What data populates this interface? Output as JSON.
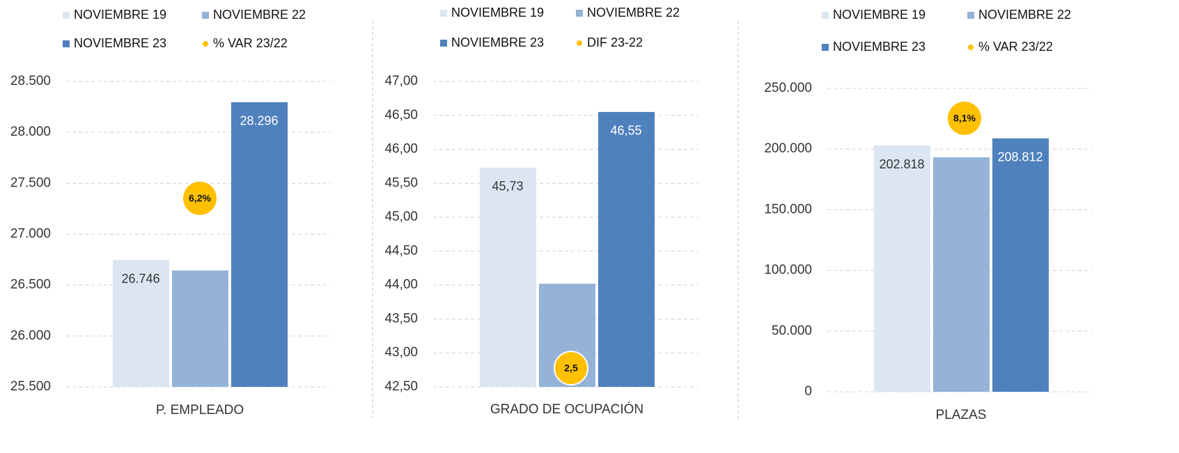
{
  "chart_data": [
    {
      "type": "bar",
      "categories": [
        "P. EMPLEADO"
      ],
      "series": [
        {
          "name": "NOVIEMBRE 19",
          "color": "#dce6f2",
          "values": [
            26746
          ],
          "value_labels": [
            "26.746"
          ]
        },
        {
          "name": "NOVIEMBRE 22",
          "color": "#95b3d7",
          "values": [
            26644
          ]
        },
        {
          "name": "NOVIEMBRE 23",
          "color": "#4f81bd",
          "values": [
            28296
          ],
          "value_labels": [
            "28.296"
          ]
        },
        {
          "name": "% VAR 23/22",
          "color": "#ffc000",
          "values": [
            6.2
          ],
          "value_labels": [
            "6,2%"
          ],
          "marker": true
        }
      ],
      "ylim": [
        25500,
        28500
      ],
      "yticks": [
        {
          "value": 25500,
          "label": "25.500"
        },
        {
          "value": 26000,
          "label": "26.000"
        },
        {
          "value": 26500,
          "label": "26.500"
        },
        {
          "value": 27000,
          "label": "27.000"
        },
        {
          "value": 27500,
          "label": "27.500"
        },
        {
          "value": 28000,
          "label": "28.000"
        },
        {
          "value": 28500,
          "label": "28.500"
        }
      ],
      "grid": true
    },
    {
      "type": "bar",
      "categories": [
        "GRADO DE OCUPACIÓN"
      ],
      "series": [
        {
          "name": "NOVIEMBRE 19",
          "color": "#dce6f2",
          "values": [
            45.73
          ],
          "value_labels": [
            "45,73"
          ]
        },
        {
          "name": "NOVIEMBRE 22",
          "color": "#95b3d7",
          "values": [
            44.02
          ]
        },
        {
          "name": "NOVIEMBRE 23",
          "color": "#4f81bd",
          "values": [
            46.55
          ],
          "value_labels": [
            "46,55"
          ]
        },
        {
          "name": "DIF 23-22",
          "color": "#ffc000",
          "values": [
            2.5
          ],
          "value_labels": [
            "2,5"
          ],
          "marker": true
        }
      ],
      "ylim": [
        42.5,
        47
      ],
      "yticks": [
        {
          "value": 42.5,
          "label": "42,50"
        },
        {
          "value": 43,
          "label": "43,00"
        },
        {
          "value": 43.5,
          "label": "43,50"
        },
        {
          "value": 44,
          "label": "44,00"
        },
        {
          "value": 44.5,
          "label": "44,50"
        },
        {
          "value": 45,
          "label": "45,00"
        },
        {
          "value": 45.5,
          "label": "45,50"
        },
        {
          "value": 46,
          "label": "46,00"
        },
        {
          "value": 46.5,
          "label": "46,50"
        },
        {
          "value": 47,
          "label": "47,00"
        }
      ],
      "grid": true
    },
    {
      "type": "bar",
      "categories": [
        "PLAZAS"
      ],
      "series": [
        {
          "name": "NOVIEMBRE 19",
          "color": "#dce6f2",
          "values": [
            202818
          ],
          "value_labels": [
            "202.818"
          ]
        },
        {
          "name": "NOVIEMBRE 22",
          "color": "#95b3d7",
          "values": [
            193200
          ]
        },
        {
          "name": "NOVIEMBRE 23",
          "color": "#4f81bd",
          "values": [
            208812
          ],
          "value_labels": [
            "208.812"
          ]
        },
        {
          "name": "% VAR 23/22",
          "color": "#ffc000",
          "values": [
            8.1
          ],
          "value_labels": [
            "8,1%"
          ],
          "marker": true
        }
      ],
      "ylim": [
        0,
        250000
      ],
      "yticks": [
        0,
        {
          "value": 50000,
          "label": "50.000"
        },
        {
          "value": 100000,
          "label": "100.000"
        },
        {
          "value": 150000,
          "label": "150.000"
        },
        {
          "value": 200000,
          "label": "200.000"
        },
        {
          "value": 250000,
          "label": "250.000"
        }
      ],
      "grid": true
    }
  ]
}
